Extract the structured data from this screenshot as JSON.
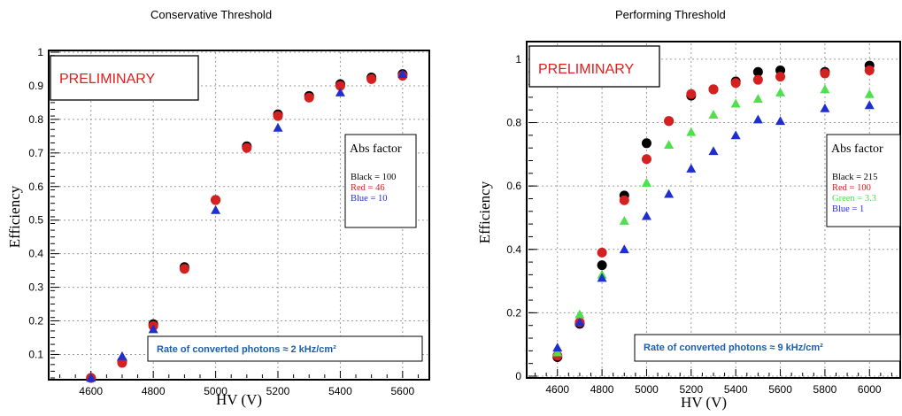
{
  "colors": {
    "black": "#000000",
    "red": "#d42020",
    "blue": "#1f2fcf",
    "green": "#4ee04e",
    "prelim": "#e41b1b",
    "rate_text": "#1a5fa8"
  },
  "chart_data": [
    {
      "type": "scatter",
      "title": "Conservative Threshold",
      "xlabel": "HV (V)",
      "ylabel": "Efficiency",
      "xlim": [
        4470,
        5680
      ],
      "ylim": [
        0.03,
        1.0
      ],
      "xticks": [
        4600,
        4800,
        5000,
        5200,
        5400,
        5600
      ],
      "yticks": [
        0.1,
        0.2,
        0.3,
        0.4,
        0.5,
        0.6,
        0.7,
        0.8,
        0.9,
        1
      ],
      "ytick_labels": [
        "0.1",
        "0.2",
        "0.3",
        "0.4",
        "0.5",
        "0.6",
        "0.7",
        "0.8",
        "0.9",
        "1"
      ],
      "grid": true,
      "preliminary": "PRELIMINARY",
      "legend": {
        "title": "Abs factor",
        "entries": [
          {
            "label": "Black = 100",
            "color": "#000000"
          },
          {
            "label": "Red = 46",
            "color": "#d42020"
          },
          {
            "label": "Blue = 10",
            "color": "#1f2fcf"
          }
        ]
      },
      "annotation": "Rate of converted photons ≈ 2 kHz/cm²",
      "series": [
        {
          "color": "#000000",
          "marker": "circle",
          "x": [
            4600,
            4700,
            4800,
            4900,
            5000,
            5100,
            5200,
            5300,
            5400,
            5500,
            5600
          ],
          "y": [
            0.03,
            0.08,
            0.19,
            0.36,
            0.56,
            0.72,
            0.815,
            0.87,
            0.905,
            0.925,
            0.935
          ]
        },
        {
          "color": "#d42020",
          "marker": "circle",
          "x": [
            4600,
            4700,
            4800,
            4900,
            5000,
            5100,
            5200,
            5300,
            5400,
            5500,
            5600
          ],
          "y": [
            0.03,
            0.075,
            0.185,
            0.355,
            0.56,
            0.715,
            0.81,
            0.865,
            0.9,
            0.92,
            0.93
          ]
        },
        {
          "color": "#1f2fcf",
          "marker": "triangle",
          "x": [
            4600,
            4700,
            4800,
            5000,
            5200,
            5400,
            5600
          ],
          "y": [
            0.03,
            0.095,
            0.175,
            0.53,
            0.775,
            0.88,
            0.935
          ]
        }
      ]
    },
    {
      "type": "scatter",
      "title": "Performing Threshold",
      "xlabel": "HV (V)",
      "ylabel": "Efficiency",
      "xlim": [
        4470,
        6130
      ],
      "ylim": [
        0,
        1.05
      ],
      "xticks": [
        4600,
        4800,
        5000,
        5200,
        5400,
        5600,
        5800,
        6000
      ],
      "yticks": [
        0,
        0.2,
        0.4,
        0.6,
        0.8,
        1
      ],
      "ytick_labels": [
        "0",
        "0.2",
        "0.4",
        "0.6",
        "0.8",
        "1"
      ],
      "grid": true,
      "preliminary": "PRELIMINARY",
      "legend": {
        "title": "Abs factor",
        "entries": [
          {
            "label": "Black = 215",
            "color": "#000000"
          },
          {
            "label": "Red = 100",
            "color": "#d42020"
          },
          {
            "label": "Green = 3.3",
            "color": "#4ee04e"
          },
          {
            "label": "Blue = 1",
            "color": "#1f2fcf"
          }
        ]
      },
      "annotation": "Rate of converted photons ≈ 9 kHz/cm²",
      "series": [
        {
          "color": "#000000",
          "marker": "circle",
          "x": [
            4600,
            4700,
            4800,
            4900,
            5000,
            5100,
            5200,
            5300,
            5400,
            5500,
            5600,
            5800,
            6000
          ],
          "y": [
            0.06,
            0.165,
            0.35,
            0.57,
            0.735,
            0.805,
            0.885,
            0.905,
            0.93,
            0.96,
            0.965,
            0.96,
            0.98
          ]
        },
        {
          "color": "#d42020",
          "marker": "circle",
          "x": [
            4600,
            4700,
            4800,
            4900,
            5000,
            5100,
            5200,
            5300,
            5400,
            5500,
            5600,
            5800,
            6000
          ],
          "y": [
            0.065,
            0.17,
            0.39,
            0.555,
            0.685,
            0.805,
            0.89,
            0.905,
            0.925,
            0.935,
            0.945,
            0.955,
            0.965
          ]
        },
        {
          "color": "#4ee04e",
          "marker": "triangle",
          "x": [
            4600,
            4700,
            4800,
            4900,
            5000,
            5100,
            5200,
            5300,
            5400,
            5500,
            5600,
            5800,
            6000
          ],
          "y": [
            0.075,
            0.195,
            0.32,
            0.49,
            0.61,
            0.73,
            0.77,
            0.825,
            0.86,
            0.875,
            0.895,
            0.905,
            0.89
          ]
        },
        {
          "color": "#1f2fcf",
          "marker": "triangle",
          "x": [
            4600,
            4700,
            4800,
            4900,
            5000,
            5100,
            5200,
            5300,
            5400,
            5500,
            5600,
            5800,
            6000
          ],
          "y": [
            0.09,
            0.17,
            0.31,
            0.4,
            0.505,
            0.575,
            0.655,
            0.71,
            0.76,
            0.81,
            0.805,
            0.845,
            0.855
          ]
        }
      ]
    }
  ]
}
